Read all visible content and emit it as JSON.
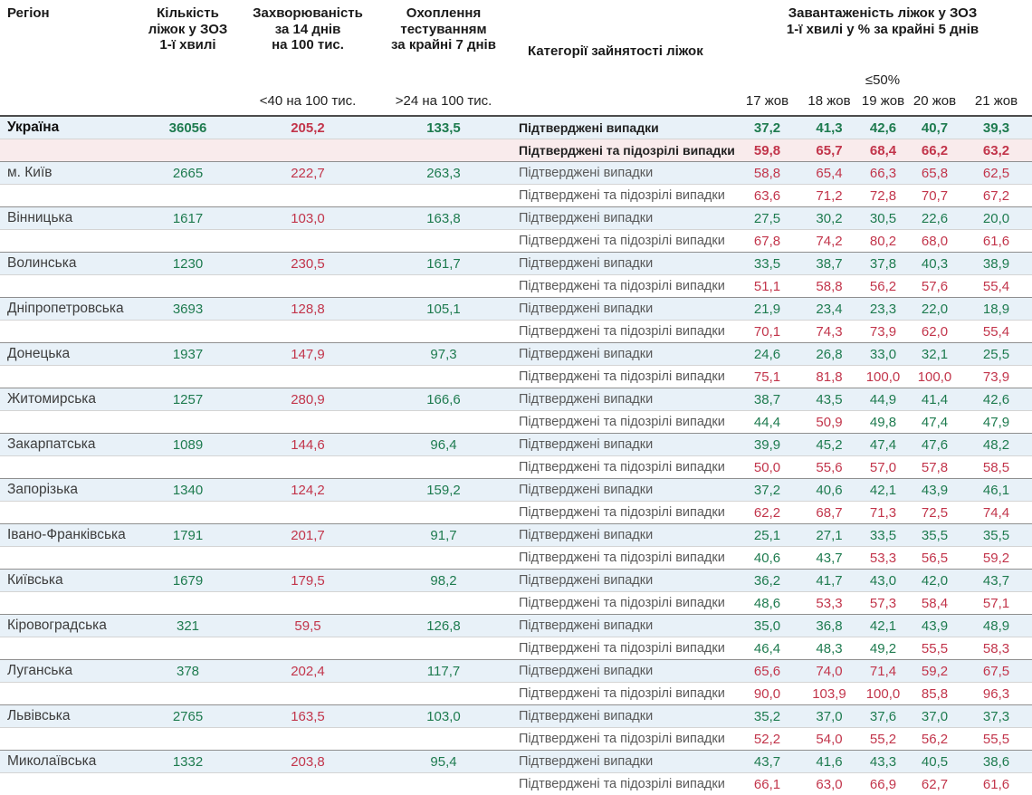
{
  "header": {
    "columns": {
      "region": "Регіон",
      "beds": [
        "Кількість",
        "ліжок у ЗОЗ",
        "1-ї хвилі"
      ],
      "incidence": [
        "Захворюваність",
        "за 14 днів",
        "на 100 тис."
      ],
      "testing": [
        "Охоплення",
        "тестуванням",
        "за крайні 7 днів"
      ],
      "category": "Категорії зайнятості ліжок",
      "occupancy": [
        "Завантаженість ліжок у ЗОЗ",
        "1-ї хвилі у % за крайні 5 днів"
      ]
    },
    "thresholds": {
      "incidence": "<40 на 100 тис.",
      "testing": ">24 на 100 тис.",
      "occupancy": "≤50%"
    },
    "dates": [
      "17 жов",
      "18 жов",
      "19 жов",
      "20 жов",
      "21 жов"
    ]
  },
  "row_labels": {
    "confirmed": "Підтверджені випадки",
    "confirmed_suspected": "Підтверджені та підозрілі випадки"
  },
  "colors": {
    "green": "#1e7b4f",
    "red": "#c2354b",
    "row_blue": "#e8f1f8",
    "ukraine_pink": "#f9ebec"
  },
  "color_rules": {
    "incidence_red_if_over": 40,
    "testing_green_if_over": 24,
    "occupancy_red_if_at_least": 50
  },
  "regions": [
    {
      "name": "Україна",
      "bold": true,
      "beds": "36056",
      "incidence": "205,2",
      "testing": "133,5",
      "confirmed": [
        "37,2",
        "41,3",
        "42,6",
        "40,7",
        "39,3"
      ],
      "suspected": [
        "59,8",
        "65,7",
        "68,4",
        "66,2",
        "63,2"
      ]
    },
    {
      "name": "м. Київ",
      "beds": "2665",
      "incidence": "222,7",
      "testing": "263,3",
      "confirmed": [
        "58,8",
        "65,4",
        "66,3",
        "65,8",
        "62,5"
      ],
      "suspected": [
        "63,6",
        "71,2",
        "72,8",
        "70,7",
        "67,2"
      ]
    },
    {
      "name": "Вінницька",
      "beds": "1617",
      "incidence": "103,0",
      "testing": "163,8",
      "confirmed": [
        "27,5",
        "30,2",
        "30,5",
        "22,6",
        "20,0"
      ],
      "suspected": [
        "67,8",
        "74,2",
        "80,2",
        "68,0",
        "61,6"
      ]
    },
    {
      "name": "Волинська",
      "beds": "1230",
      "incidence": "230,5",
      "testing": "161,7",
      "confirmed": [
        "33,5",
        "38,7",
        "37,8",
        "40,3",
        "38,9"
      ],
      "suspected": [
        "51,1",
        "58,8",
        "56,2",
        "57,6",
        "55,4"
      ]
    },
    {
      "name": "Дніпропетровська",
      "beds": "3693",
      "incidence": "128,8",
      "testing": "105,1",
      "confirmed": [
        "21,9",
        "23,4",
        "23,3",
        "22,0",
        "18,9"
      ],
      "suspected": [
        "70,1",
        "74,3",
        "73,9",
        "62,0",
        "55,4"
      ]
    },
    {
      "name": "Донецька",
      "beds": "1937",
      "incidence": "147,9",
      "testing": "97,3",
      "confirmed": [
        "24,6",
        "26,8",
        "33,0",
        "32,1",
        "25,5"
      ],
      "suspected": [
        "75,1",
        "81,8",
        "100,0",
        "100,0",
        "73,9"
      ]
    },
    {
      "name": "Житомирська",
      "beds": "1257",
      "incidence": "280,9",
      "testing": "166,6",
      "confirmed": [
        "38,7",
        "43,5",
        "44,9",
        "41,4",
        "42,6"
      ],
      "suspected": [
        "44,4",
        "50,9",
        "49,8",
        "47,4",
        "47,9"
      ]
    },
    {
      "name": "Закарпатська",
      "beds": "1089",
      "incidence": "144,6",
      "testing": "96,4",
      "confirmed": [
        "39,9",
        "45,2",
        "47,4",
        "47,6",
        "48,2"
      ],
      "suspected": [
        "50,0",
        "55,6",
        "57,0",
        "57,8",
        "58,5"
      ]
    },
    {
      "name": "Запорізька",
      "beds": "1340",
      "incidence": "124,2",
      "testing": "159,2",
      "confirmed": [
        "37,2",
        "40,6",
        "42,1",
        "43,9",
        "46,1"
      ],
      "suspected": [
        "62,2",
        "68,7",
        "71,3",
        "72,5",
        "74,4"
      ]
    },
    {
      "name": "Івано-Франківська",
      "beds": "1791",
      "incidence": "201,7",
      "testing": "91,7",
      "confirmed": [
        "25,1",
        "27,1",
        "33,5",
        "35,5",
        "35,5"
      ],
      "suspected": [
        "40,6",
        "43,7",
        "53,3",
        "56,5",
        "59,2"
      ]
    },
    {
      "name": "Київська",
      "beds": "1679",
      "incidence": "179,5",
      "testing": "98,2",
      "confirmed": [
        "36,2",
        "41,7",
        "43,0",
        "42,0",
        "43,7"
      ],
      "suspected": [
        "48,6",
        "53,3",
        "57,3",
        "58,4",
        "57,1"
      ]
    },
    {
      "name": "Кіровоградська",
      "beds": "321",
      "incidence": "59,5",
      "testing": "126,8",
      "confirmed": [
        "35,0",
        "36,8",
        "42,1",
        "43,9",
        "48,9"
      ],
      "suspected": [
        "46,4",
        "48,3",
        "49,2",
        "55,5",
        "58,3"
      ]
    },
    {
      "name": "Луганська",
      "beds": "378",
      "incidence": "202,4",
      "testing": "117,7",
      "confirmed": [
        "65,6",
        "74,0",
        "71,4",
        "59,2",
        "67,5"
      ],
      "suspected": [
        "90,0",
        "103,9",
        "100,0",
        "85,8",
        "96,3"
      ]
    },
    {
      "name": "Львівська",
      "beds": "2765",
      "incidence": "163,5",
      "testing": "103,0",
      "confirmed": [
        "35,2",
        "37,0",
        "37,6",
        "37,0",
        "37,3"
      ],
      "suspected": [
        "52,2",
        "54,0",
        "55,2",
        "56,2",
        "55,5"
      ]
    },
    {
      "name": "Миколаївська",
      "beds": "1332",
      "incidence": "203,8",
      "testing": "95,4",
      "confirmed": [
        "43,7",
        "41,6",
        "43,3",
        "40,5",
        "38,6"
      ],
      "suspected": [
        "66,1",
        "63,0",
        "66,9",
        "62,7",
        "61,6"
      ]
    }
  ]
}
